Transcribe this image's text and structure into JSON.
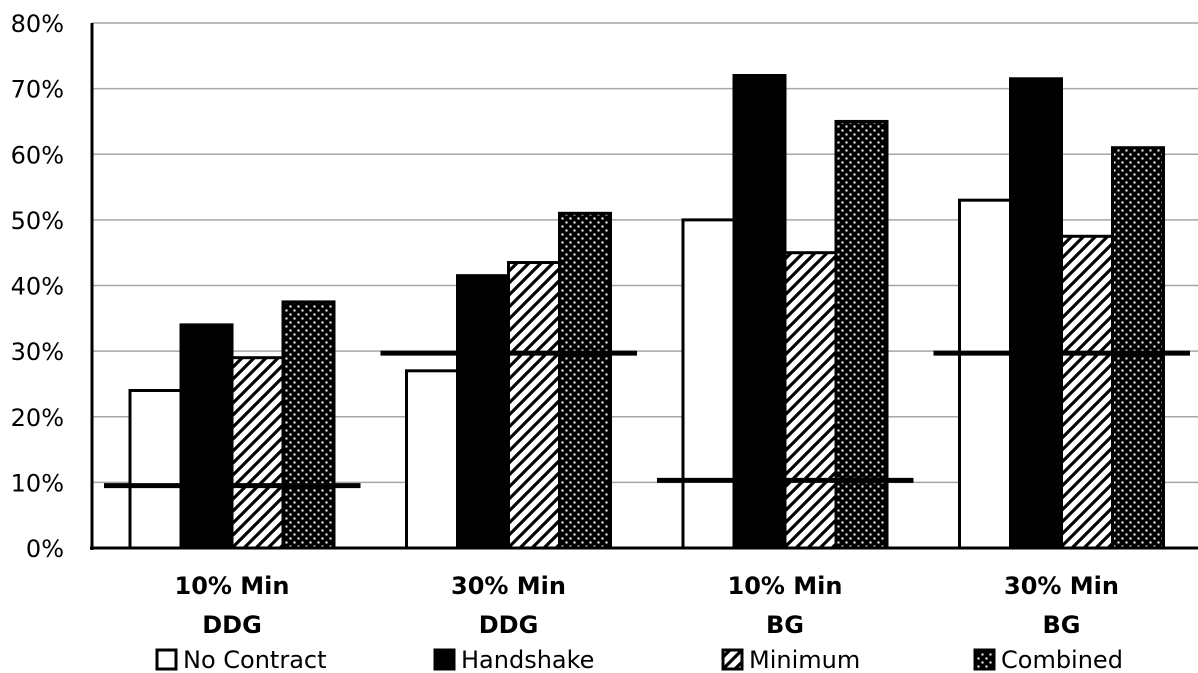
{
  "chart_data": {
    "type": "bar",
    "categories": [
      [
        "10% Min",
        "DDG"
      ],
      [
        "30% Min",
        "DDG"
      ],
      [
        "10% Min",
        "BG"
      ],
      [
        "30% Min",
        "BG"
      ]
    ],
    "series": [
      {
        "name": "No Contract",
        "values": [
          24,
          27,
          50,
          53
        ],
        "pattern": "none"
      },
      {
        "name": "Handshake",
        "values": [
          34,
          41.5,
          72,
          71.5
        ],
        "pattern": "solid"
      },
      {
        "name": "Minimum",
        "values": [
          29,
          43.5,
          45,
          47.5
        ],
        "pattern": "hatch"
      },
      {
        "name": "Combined",
        "values": [
          37.5,
          51,
          65,
          61
        ],
        "pattern": "dots"
      }
    ],
    "reference_lines": [
      9.5,
      29.7,
      10.3,
      29.7
    ],
    "y_ticks": [
      "0%",
      "10%",
      "20%",
      "30%",
      "40%",
      "50%",
      "60%",
      "70%",
      "80%"
    ],
    "ylim": [
      0,
      80
    ],
    "grid": true,
    "legend": "bottom",
    "colors": {
      "bar_fill": "#000000",
      "bar_empty": "#ffffff",
      "grid": "#a6a6a6",
      "axis": "#000000"
    }
  }
}
